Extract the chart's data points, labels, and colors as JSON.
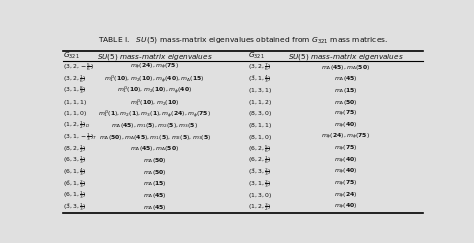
{
  "bg_color": "#e0e0e0",
  "text_color": "#111111",
  "title": "TABLE I.   $SU(5)$ mass-matrix eigenvalues obtained from $G_{321}$ mass matrices.",
  "n_rows": 13,
  "rows_left": [
    [
      "$(3, 2, -\\frac{5}{6})$",
      "$m_{\\phi}(\\mathbf{24}),m_{\\phi}(\\mathbf{75})$"
    ],
    [
      "$(3, 2, \\frac{1}{6})$",
      "$m_1^G(\\mathbf{10}),m_2(\\mathbf{10}),m_{\\phi}(\\mathbf{40}),m_{\\Delta}(\\mathbf{15})$"
    ],
    [
      "$(3, 1, \\frac{8}{3})$",
      "$m_1^G(\\mathbf{10}),m_2(\\mathbf{10}),m_{\\phi}(\\mathbf{40})$"
    ],
    [
      "$(1, 1, 1)$",
      "$m_1^G(\\mathbf{10}),m_2(\\mathbf{10})$"
    ],
    [
      "$(1, 1, 0)$",
      "$m_1^G(\\mathbf{1}),m_2(\\mathbf{1}),m_3(\\mathbf{1}),m_{\\phi}(\\mathbf{24}),m_{\\phi}(\\mathbf{75})$"
    ],
    [
      "$(1, 2, \\frac{1}{2})_D$",
      "$m_{\\Delta}(\\mathbf{45}),m_1(\\mathbf{5}),m_2(\\mathbf{5}),m_3(\\mathbf{5})$"
    ],
    [
      "$(3, 1, -\\frac{1}{3})_T$",
      "$m_{\\Delta}(\\mathbf{50}),m_{\\Delta}(\\mathbf{45}),m_1(\\mathbf{5}),m_2(\\mathbf{5}),m_3(\\mathbf{5})$"
    ],
    [
      "$(8, 2, \\frac{1}{2})$",
      "$m_{\\Delta}(\\mathbf{45}),m_{\\Delta}(\\mathbf{50})$"
    ],
    [
      "$(6, 3, \\frac{1}{3})$",
      "$m_{\\Delta}(\\mathbf{50})$"
    ],
    [
      "$(6, 1, \\frac{4}{3})$",
      "$m_{\\Delta}(\\mathbf{50})$"
    ],
    [
      "$(\\bar{6}, 1, \\frac{2}{3})$",
      "$m_{\\Delta}(\\mathbf{15})$"
    ],
    [
      "$(6, 1, \\frac{1}{3})$",
      "$m_{\\Delta}(\\mathbf{45})$"
    ],
    [
      "$(\\bar{3}, 3, \\frac{1}{3})$",
      "$m_{\\Delta}(\\mathbf{45})$"
    ]
  ],
  "rows_right": [
    [
      "$(3, 2, \\frac{7}{6})$",
      "$m_{\\Delta}(\\mathbf{45}),m_{\\Delta}(\\mathbf{50})$"
    ],
    [
      "$(\\bar{3}, 1, \\frac{4}{3})$",
      "$m_{\\Delta}(\\mathbf{45})$"
    ],
    [
      "$(1, 3, 1)$",
      "$m_{\\Delta}(\\mathbf{15})$"
    ],
    [
      "$(1, 1, 2)$",
      "$m_{\\Delta}(\\mathbf{50})$"
    ],
    [
      "$(8, 3, 0)$",
      "$m_{\\phi}(\\mathbf{75})$"
    ],
    [
      "$(8, 1, 1)$",
      "$m_{\\phi}(\\mathbf{40})$"
    ],
    [
      "$(8, 1, 0)$",
      "$m_{\\phi}(\\mathbf{24}),m_{\\phi}(\\mathbf{75})$"
    ],
    [
      "$(6, 2, \\frac{5}{6})$",
      "$m_{\\phi}(\\mathbf{75})$"
    ],
    [
      "$(6, 2, \\frac{1}{6})$",
      "$m_{\\phi}(\\mathbf{40})$"
    ],
    [
      "$(\\bar{3}, 3, \\frac{2}{3})$",
      "$m_{\\phi}(\\mathbf{40})$"
    ],
    [
      "$(3, 1, \\frac{2}{3})$",
      "$m_{\\phi}(\\mathbf{75})$"
    ],
    [
      "$(1, 3, 0)$",
      "$m_{\\phi}(\\mathbf{24})$"
    ],
    [
      "$(1, 2, \\frac{3}{2})$",
      "$m_{\\phi}(\\mathbf{40})$"
    ]
  ]
}
